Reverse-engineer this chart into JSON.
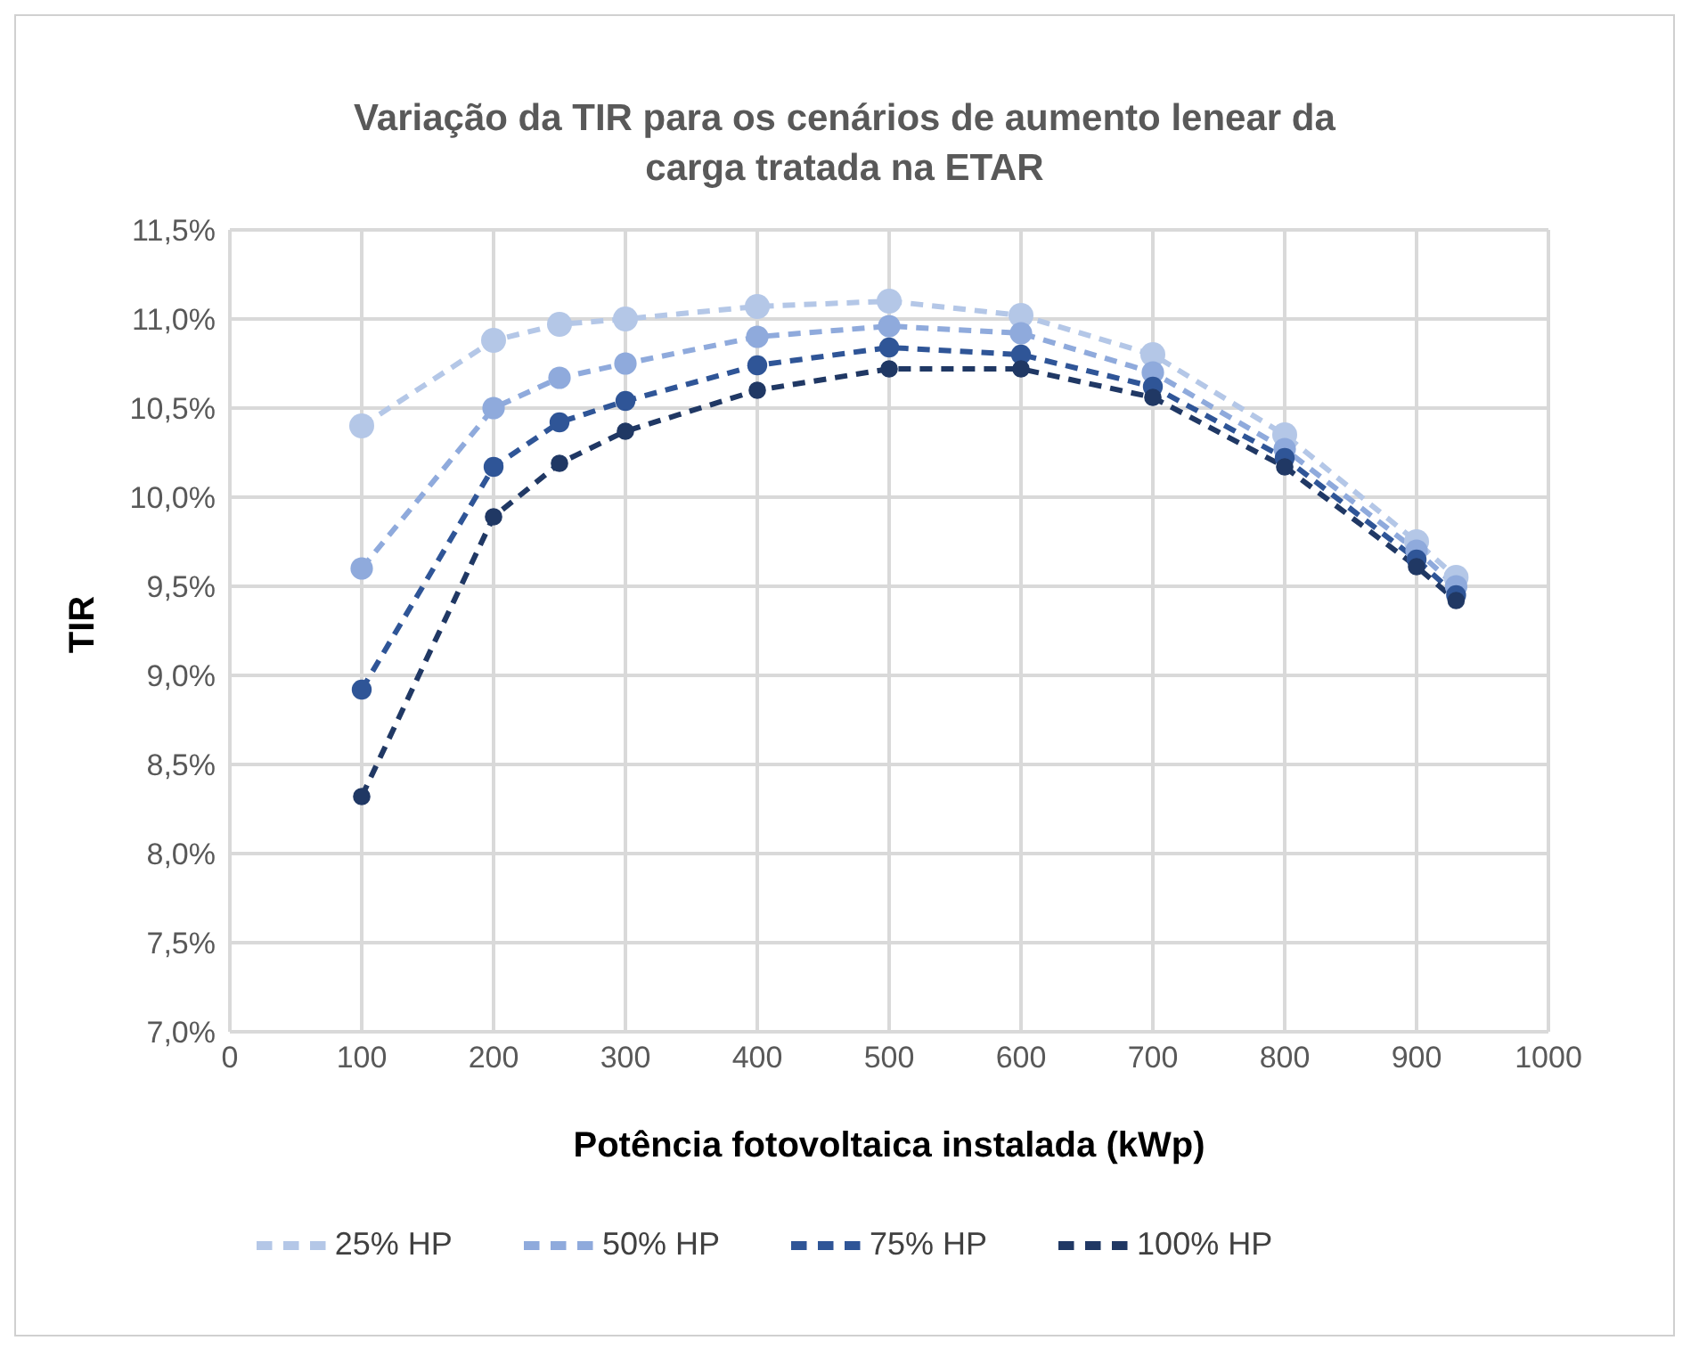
{
  "chart_data": {
    "type": "line",
    "title": "Variação da TIR para os cenários de aumento lenear da carga tratada na ETAR",
    "xlabel": "Potência fotovoltaica instalada (kWp)",
    "ylabel": "TIR",
    "x": [
      100,
      200,
      250,
      300,
      400,
      500,
      600,
      700,
      800,
      900,
      930
    ],
    "series": [
      {
        "name": "25% HP",
        "color": "#b4c7e7",
        "values": [
          10.4,
          10.88,
          10.97,
          11.0,
          11.07,
          11.1,
          11.02,
          10.8,
          10.35,
          9.75,
          9.55
        ]
      },
      {
        "name": "50% HP",
        "color": "#8faadc",
        "values": [
          9.6,
          10.5,
          10.67,
          10.75,
          10.9,
          10.96,
          10.92,
          10.7,
          10.27,
          9.7,
          9.5
        ]
      },
      {
        "name": "75% HP",
        "color": "#2f5597",
        "values": [
          8.92,
          10.17,
          10.42,
          10.54,
          10.74,
          10.84,
          10.8,
          10.62,
          10.22,
          9.65,
          9.45
        ]
      },
      {
        "name": "100% HP",
        "color": "#203864",
        "values": [
          8.32,
          9.89,
          10.19,
          10.37,
          10.6,
          10.72,
          10.72,
          10.56,
          10.17,
          9.61,
          9.42
        ]
      }
    ],
    "xlim": [
      0,
      1000
    ],
    "xticks": [
      0,
      100,
      200,
      300,
      400,
      500,
      600,
      700,
      800,
      900,
      1000
    ],
    "ylim": [
      7,
      11.5
    ],
    "yticks": [
      {
        "value": 7,
        "label": "7,0%"
      },
      {
        "value": 7.5,
        "label": "7,5%"
      },
      {
        "value": 8,
        "label": "8,0%"
      },
      {
        "value": 8.5,
        "label": "8,5%"
      },
      {
        "value": 9,
        "label": "9,0%"
      },
      {
        "value": 9.5,
        "label": "9,5%"
      },
      {
        "value": 10,
        "label": "10,0%"
      },
      {
        "value": 10.5,
        "label": "10,5%"
      },
      {
        "value": 11,
        "label": "11,0%"
      },
      {
        "value": 11.5,
        "label": "11,5%"
      }
    ],
    "grid": true,
    "legend": "bottom",
    "marker": "circle",
    "line_style": "dashed"
  }
}
